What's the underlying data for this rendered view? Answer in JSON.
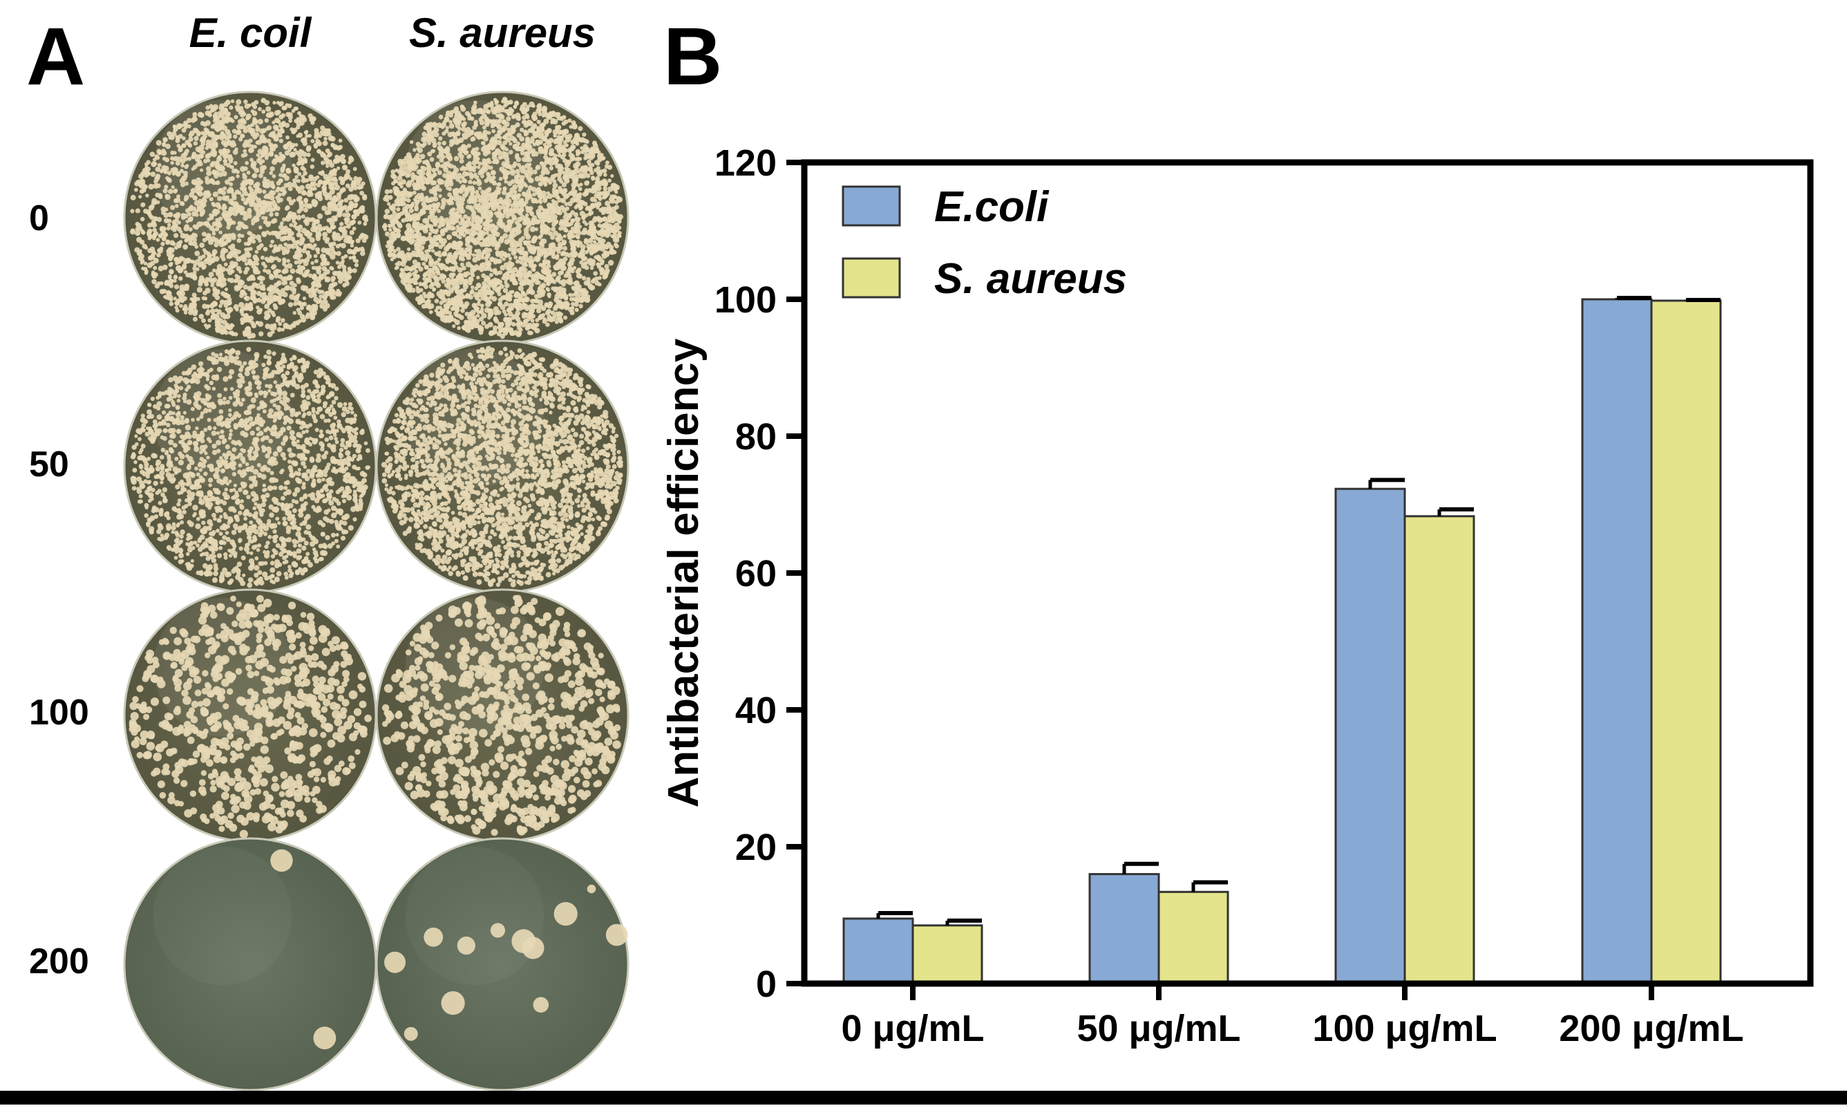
{
  "panel_a": {
    "label": "A",
    "columns": [
      "E. coil",
      "S. aureus"
    ],
    "rows": [
      "0",
      "50",
      "100",
      "200"
    ],
    "plates": [
      {
        "concentration": "0",
        "ecoli_colonies": 2200,
        "saureus_colonies": 3200
      },
      {
        "concentration": "50",
        "ecoli_colonies": 1800,
        "saureus_colonies": 2600
      },
      {
        "concentration": "100",
        "ecoli_colonies": 700,
        "saureus_colonies": 800
      },
      {
        "concentration": "200",
        "ecoli_colonies": 2,
        "saureus_colonies": 12
      }
    ],
    "colors": {
      "plate_dark": "#4a4a38",
      "plate_light": "#9a9a7a",
      "colony": "#e6d8b4",
      "clear_plate": "#5e6b58"
    }
  },
  "panel_b": {
    "label": "B",
    "chart_data": {
      "type": "bar",
      "categories": [
        "0 μg/mL",
        "50 μg/mL",
        "100 μg/mL",
        "200 μg/mL"
      ],
      "series": [
        {
          "name": "E.coli",
          "values": [
            9.5,
            16.0,
            72.3,
            100.0
          ],
          "errors": [
            0.8,
            1.5,
            1.3,
            0.2
          ],
          "color": "#88a9d3"
        },
        {
          "name": "S. aureus",
          "values": [
            8.5,
            13.4,
            68.3,
            99.8
          ],
          "errors": [
            0.7,
            1.4,
            1.0,
            0.1
          ],
          "color": "#e4e48c"
        }
      ],
      "title": "",
      "xlabel": "",
      "ylabel": "Antibacterial efficiency",
      "ylim": [
        0,
        120
      ],
      "yticks": [
        "0",
        "20",
        "40",
        "60",
        "80",
        "100",
        "120"
      ],
      "grid": false,
      "legend": "top-left"
    }
  }
}
